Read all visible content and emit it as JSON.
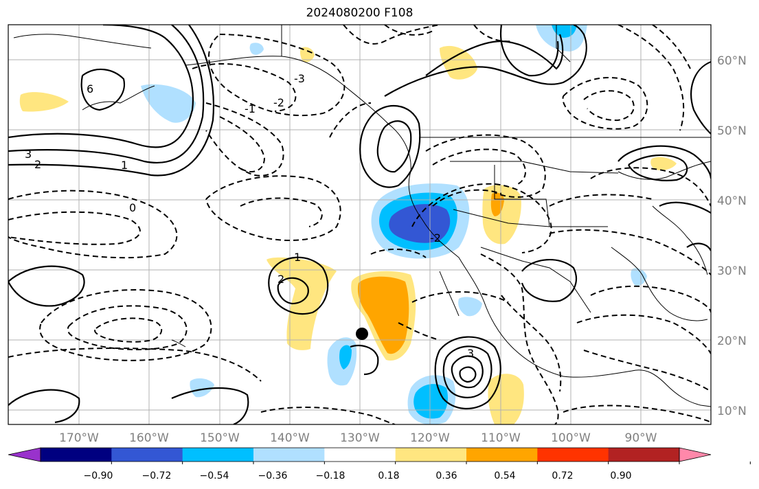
{
  "title": "2024080200 F108",
  "map": {
    "lon_range": [
      -180,
      -80
    ],
    "lat_range": [
      8,
      65
    ],
    "lat_labels": [
      "60°N",
      "50°N",
      "40°N",
      "30°N",
      "20°N",
      "10°N"
    ],
    "lon_labels": [
      "170°W",
      "160°W",
      "150°W",
      "140°W",
      "130°W",
      "120°W",
      "110°W",
      "100°W",
      "90°W"
    ],
    "marker": {
      "lon": -130.5,
      "lat": 21
    },
    "contour_labels": [
      "3",
      "-3",
      "2",
      "-2",
      "1",
      "-1",
      "0",
      "6",
      "-2",
      "3",
      "2",
      "1"
    ]
  },
  "colorbar": {
    "colors": [
      "#9932cc",
      "#000080",
      "#3357d4",
      "#00bfff",
      "#b0e0ff",
      "#ffffff",
      "#ffe680",
      "#ffa500",
      "#ff3300",
      "#b22222",
      "#ff88aa"
    ],
    "tick_labels": [
      "−0.90",
      "−0.72",
      "−0.54",
      "−0.36",
      "−0.18",
      "0.18",
      "0.36",
      "0.54",
      "0.72",
      "0.90"
    ]
  }
}
